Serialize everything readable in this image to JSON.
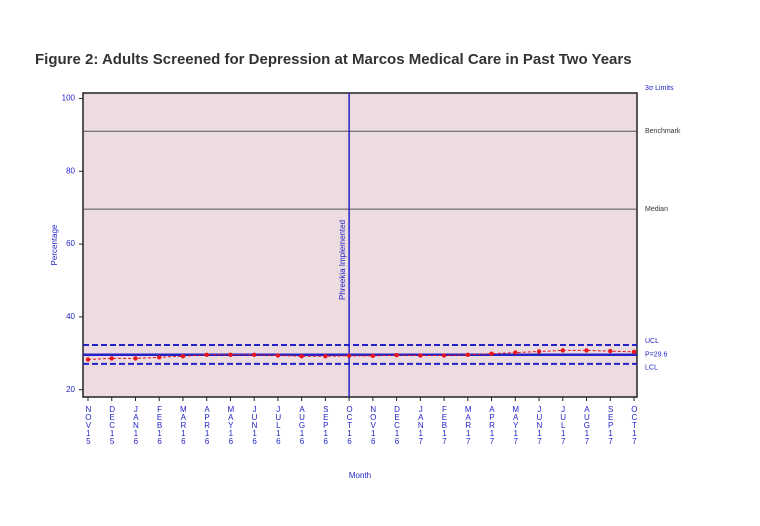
{
  "chart_data": {
    "type": "line",
    "title": "Figure 2: Adults Screened for Depression at Marcos Medical Care in Past Two Years",
    "y_label": "Percentage",
    "x_label": "Month",
    "categories": [
      "NOV15",
      "DEC15",
      "JAN16",
      "FEB16",
      "MAR16",
      "APR16",
      "MAY16",
      "JUN16",
      "JUL16",
      "AUG16",
      "SEP16",
      "OCT16",
      "NOV16",
      "DEC16",
      "JAN17",
      "FEB17",
      "MAR17",
      "APR17",
      "MAY17",
      "JUN17",
      "JUL17",
      "AUG17",
      "SEP17",
      "OCT17"
    ],
    "series": [
      {
        "name": "Percentage",
        "color": "#e8141e",
        "values": [
          28.3,
          28.6,
          28.6,
          28.9,
          29.2,
          29.6,
          29.6,
          29.6,
          29.4,
          29.2,
          29.2,
          29.3,
          29.3,
          29.5,
          29.4,
          29.4,
          29.6,
          29.9,
          30.2,
          30.5,
          30.8,
          30.8,
          30.6,
          30.4
        ]
      }
    ],
    "ylim": [
      18,
      101.5
    ],
    "yticks": [
      20,
      40,
      60,
      80,
      100
    ],
    "limits_label": "3σ Limits",
    "reference_lines": [
      {
        "label": "Benchmark",
        "value": 91,
        "color": "#555555",
        "style": "solid"
      },
      {
        "label": "Median",
        "value": 69.6,
        "color": "#555555",
        "style": "solid"
      },
      {
        "label": "UCL",
        "value": 32.3,
        "color": "#2323c8",
        "style": "dashed"
      },
      {
        "label": "P=29.6",
        "value": 29.6,
        "color": "#2323c8",
        "style": "solid"
      },
      {
        "label": "LCL",
        "value": 27.1,
        "color": "#2323c8",
        "style": "dashed"
      }
    ],
    "annotation": {
      "label": "Phreekia Implemented",
      "category_index": 11,
      "color": "#2323c8"
    }
  }
}
